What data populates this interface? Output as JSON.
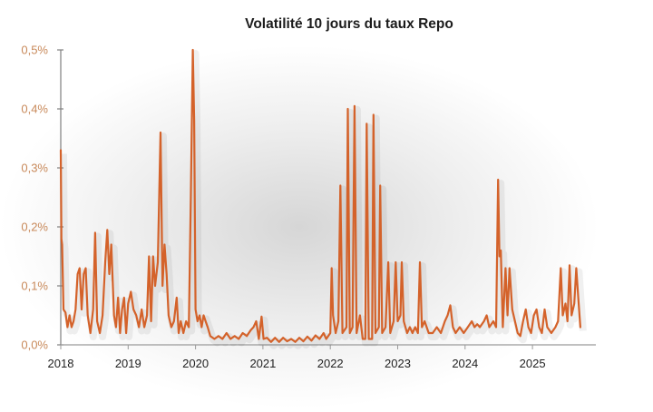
{
  "chart_data": {
    "type": "line",
    "title": "Volatilité 10 jours du taux Repo",
    "xlabel": "",
    "ylabel": "",
    "ylim": [
      0,
      0.5
    ],
    "xlim": [
      2018,
      2025.95
    ],
    "grid": false,
    "legend": null,
    "y_ticks": [
      "0,0%",
      "0,1%",
      "0,2%",
      "0,3%",
      "0,4%",
      "0,5%"
    ],
    "x_ticks": [
      "2018",
      "2019",
      "2020",
      "2021",
      "2022",
      "2023",
      "2024",
      "2025"
    ],
    "line_color": "#d4622a",
    "y_tick_color": "#c8895a",
    "series": [
      {
        "name": "Volatilité 10 jours",
        "unit": "%",
        "points": [
          [
            2018.0,
            0.33
          ],
          [
            2018.01,
            0.18
          ],
          [
            2018.02,
            0.17
          ],
          [
            2018.04,
            0.06
          ],
          [
            2018.07,
            0.055
          ],
          [
            2018.1,
            0.03
          ],
          [
            2018.13,
            0.05
          ],
          [
            2018.16,
            0.03
          ],
          [
            2018.19,
            0.04
          ],
          [
            2018.22,
            0.06
          ],
          [
            2018.25,
            0.12
          ],
          [
            2018.28,
            0.13
          ],
          [
            2018.31,
            0.06
          ],
          [
            2018.34,
            0.12
          ],
          [
            2018.37,
            0.13
          ],
          [
            2018.4,
            0.05
          ],
          [
            2018.44,
            0.02
          ],
          [
            2018.48,
            0.06
          ],
          [
            2018.51,
            0.19
          ],
          [
            2018.54,
            0.04
          ],
          [
            2018.58,
            0.02
          ],
          [
            2018.62,
            0.05
          ],
          [
            2018.66,
            0.14
          ],
          [
            2018.69,
            0.195
          ],
          [
            2018.72,
            0.12
          ],
          [
            2018.75,
            0.17
          ],
          [
            2018.79,
            0.05
          ],
          [
            2018.82,
            0.03
          ],
          [
            2018.85,
            0.08
          ],
          [
            2018.88,
            0.02
          ],
          [
            2018.91,
            0.06
          ],
          [
            2018.94,
            0.08
          ],
          [
            2018.97,
            0.02
          ],
          [
            2019.0,
            0.07
          ],
          [
            2019.04,
            0.09
          ],
          [
            2019.08,
            0.06
          ],
          [
            2019.12,
            0.05
          ],
          [
            2019.16,
            0.03
          ],
          [
            2019.2,
            0.06
          ],
          [
            2019.24,
            0.03
          ],
          [
            2019.28,
            0.05
          ],
          [
            2019.31,
            0.15
          ],
          [
            2019.34,
            0.04
          ],
          [
            2019.37,
            0.15
          ],
          [
            2019.4,
            0.1
          ],
          [
            2019.44,
            0.14
          ],
          [
            2019.48,
            0.36
          ],
          [
            2019.51,
            0.1
          ],
          [
            2019.54,
            0.17
          ],
          [
            2019.57,
            0.12
          ],
          [
            2019.6,
            0.05
          ],
          [
            2019.64,
            0.03
          ],
          [
            2019.68,
            0.04
          ],
          [
            2019.72,
            0.08
          ],
          [
            2019.75,
            0.02
          ],
          [
            2019.78,
            0.04
          ],
          [
            2019.82,
            0.02
          ],
          [
            2019.86,
            0.04
          ],
          [
            2019.9,
            0.03
          ],
          [
            2019.93,
            0.25
          ],
          [
            2019.96,
            0.5
          ],
          [
            2019.98,
            0.38
          ],
          [
            2020.0,
            0.06
          ],
          [
            2020.03,
            0.04
          ],
          [
            2020.06,
            0.05
          ],
          [
            2020.09,
            0.03
          ],
          [
            2020.12,
            0.05
          ],
          [
            2020.15,
            0.04
          ],
          [
            2020.18,
            0.03
          ],
          [
            2020.22,
            0.015
          ],
          [
            2020.28,
            0.01
          ],
          [
            2020.34,
            0.015
          ],
          [
            2020.4,
            0.01
          ],
          [
            2020.46,
            0.02
          ],
          [
            2020.52,
            0.01
          ],
          [
            2020.58,
            0.015
          ],
          [
            2020.64,
            0.01
          ],
          [
            2020.7,
            0.02
          ],
          [
            2020.76,
            0.015
          ],
          [
            2020.82,
            0.025
          ],
          [
            2020.86,
            0.03
          ],
          [
            2020.9,
            0.04
          ],
          [
            2020.94,
            0.01
          ],
          [
            2020.98,
            0.048
          ],
          [
            2021.01,
            0.01
          ],
          [
            2021.06,
            0.012
          ],
          [
            2021.12,
            0.005
          ],
          [
            2021.18,
            0.012
          ],
          [
            2021.24,
            0.005
          ],
          [
            2021.3,
            0.012
          ],
          [
            2021.36,
            0.006
          ],
          [
            2021.42,
            0.01
          ],
          [
            2021.48,
            0.005
          ],
          [
            2021.54,
            0.012
          ],
          [
            2021.6,
            0.006
          ],
          [
            2021.66,
            0.014
          ],
          [
            2021.72,
            0.007
          ],
          [
            2021.78,
            0.016
          ],
          [
            2021.84,
            0.01
          ],
          [
            2021.9,
            0.02
          ],
          [
            2021.94,
            0.01
          ],
          [
            2022.0,
            0.02
          ],
          [
            2022.02,
            0.13
          ],
          [
            2022.04,
            0.05
          ],
          [
            2022.08,
            0.02
          ],
          [
            2022.12,
            0.04
          ],
          [
            2022.15,
            0.27
          ],
          [
            2022.18,
            0.02
          ],
          [
            2022.24,
            0.03
          ],
          [
            2022.26,
            0.4
          ],
          [
            2022.29,
            0.02
          ],
          [
            2022.33,
            0.03
          ],
          [
            2022.36,
            0.405
          ],
          [
            2022.39,
            0.02
          ],
          [
            2022.44,
            0.05
          ],
          [
            2022.48,
            0.01
          ],
          [
            2022.52,
            0.01
          ],
          [
            2022.54,
            0.375
          ],
          [
            2022.57,
            0.01
          ],
          [
            2022.62,
            0.01
          ],
          [
            2022.64,
            0.39
          ],
          [
            2022.67,
            0.02
          ],
          [
            2022.72,
            0.03
          ],
          [
            2022.74,
            0.27
          ],
          [
            2022.77,
            0.02
          ],
          [
            2022.82,
            0.03
          ],
          [
            2022.86,
            0.14
          ],
          [
            2022.89,
            0.02
          ],
          [
            2022.94,
            0.04
          ],
          [
            2022.97,
            0.14
          ],
          [
            2023.0,
            0.04
          ],
          [
            2023.04,
            0.05
          ],
          [
            2023.06,
            0.14
          ],
          [
            2023.09,
            0.04
          ],
          [
            2023.14,
            0.02
          ],
          [
            2023.18,
            0.03
          ],
          [
            2023.22,
            0.02
          ],
          [
            2023.26,
            0.03
          ],
          [
            2023.3,
            0.02
          ],
          [
            2023.33,
            0.14
          ],
          [
            2023.36,
            0.03
          ],
          [
            2023.4,
            0.04
          ],
          [
            2023.46,
            0.02
          ],
          [
            2023.52,
            0.02
          ],
          [
            2023.58,
            0.03
          ],
          [
            2023.64,
            0.02
          ],
          [
            2023.7,
            0.04
          ],
          [
            2023.74,
            0.05
          ],
          [
            2023.78,
            0.067
          ],
          [
            2023.82,
            0.03
          ],
          [
            2023.86,
            0.02
          ],
          [
            2023.92,
            0.03
          ],
          [
            2023.98,
            0.02
          ],
          [
            2024.04,
            0.03
          ],
          [
            2024.1,
            0.04
          ],
          [
            2024.14,
            0.03
          ],
          [
            2024.18,
            0.035
          ],
          [
            2024.22,
            0.03
          ],
          [
            2024.28,
            0.04
          ],
          [
            2024.32,
            0.05
          ],
          [
            2024.36,
            0.03
          ],
          [
            2024.42,
            0.04
          ],
          [
            2024.46,
            0.03
          ],
          [
            2024.49,
            0.28
          ],
          [
            2024.51,
            0.15
          ],
          [
            2024.53,
            0.16
          ],
          [
            2024.56,
            0.03
          ],
          [
            2024.6,
            0.13
          ],
          [
            2024.63,
            0.05
          ],
          [
            2024.66,
            0.13
          ],
          [
            2024.7,
            0.06
          ],
          [
            2024.74,
            0.04
          ],
          [
            2024.78,
            0.02
          ],
          [
            2024.82,
            0.015
          ],
          [
            2024.86,
            0.04
          ],
          [
            2024.9,
            0.06
          ],
          [
            2024.94,
            0.03
          ],
          [
            2024.98,
            0.02
          ],
          [
            2025.02,
            0.05
          ],
          [
            2025.06,
            0.06
          ],
          [
            2025.1,
            0.03
          ],
          [
            2025.14,
            0.02
          ],
          [
            2025.18,
            0.06
          ],
          [
            2025.22,
            0.03
          ],
          [
            2025.28,
            0.02
          ],
          [
            2025.34,
            0.03
          ],
          [
            2025.38,
            0.04
          ],
          [
            2025.42,
            0.13
          ],
          [
            2025.45,
            0.05
          ],
          [
            2025.49,
            0.07
          ],
          [
            2025.52,
            0.04
          ],
          [
            2025.55,
            0.135
          ],
          [
            2025.58,
            0.05
          ],
          [
            2025.62,
            0.07
          ],
          [
            2025.65,
            0.13
          ],
          [
            2025.68,
            0.08
          ],
          [
            2025.71,
            0.03
          ]
        ]
      }
    ]
  }
}
